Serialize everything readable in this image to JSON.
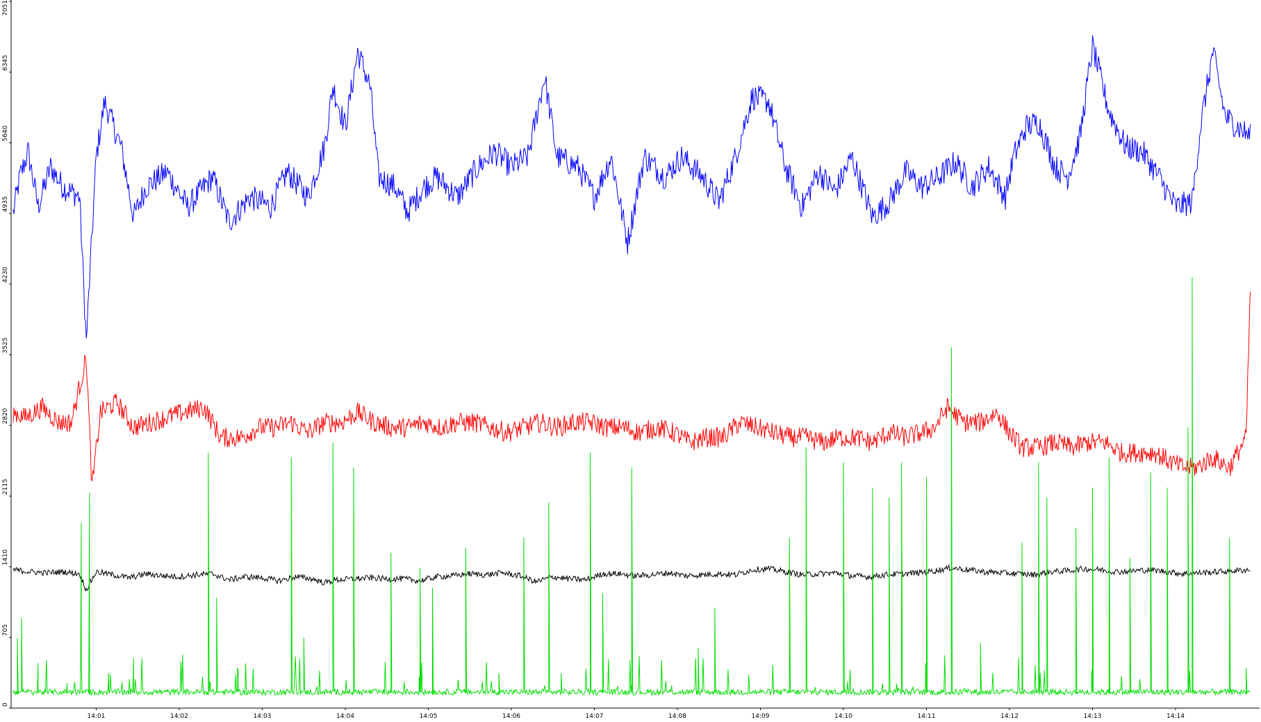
{
  "chart_data": {
    "type": "line",
    "title": "",
    "xlabel": "",
    "ylabel": "",
    "ylim": [
      0,
      7051
    ],
    "xlim_minutes": [
      14.0,
      14.9
    ],
    "y_ticks": [
      {
        "value": 0,
        "label": "0"
      },
      {
        "value": 705,
        "label": "705"
      },
      {
        "value": 1410,
        "label": "1410"
      },
      {
        "value": 2115,
        "label": "2115"
      },
      {
        "value": 2820,
        "label": "2820"
      },
      {
        "value": 3525,
        "label": "3525"
      },
      {
        "value": 4230,
        "label": "4230"
      },
      {
        "value": 4935,
        "label": "4935"
      },
      {
        "value": 5640,
        "label": "5640"
      },
      {
        "value": 6345,
        "label": "6345"
      },
      {
        "value": 7051,
        "label": "7051"
      }
    ],
    "x_ticks": [
      "14:01",
      "14:02",
      "14:03",
      "14:04",
      "14:05",
      "14:06",
      "14:07",
      "14:08",
      "14:09",
      "14:10",
      "14:11",
      "14:12",
      "14:13",
      "14:14"
    ],
    "x_tick_minutes": [
      1,
      2,
      3,
      4,
      5,
      6,
      7,
      8,
      9,
      10,
      11,
      12,
      13,
      14
    ],
    "grid": false,
    "legend": "none",
    "series": [
      {
        "color": "#0000ff",
        "points": [
          [
            0.0,
            4935
          ],
          [
            0.08,
            5300
          ],
          [
            0.18,
            5550
          ],
          [
            0.3,
            5000
          ],
          [
            0.45,
            5400
          ],
          [
            0.6,
            5200
          ],
          [
            0.8,
            5100
          ],
          [
            0.88,
            3650
          ],
          [
            1.0,
            5500
          ],
          [
            1.1,
            6050
          ],
          [
            1.3,
            5600
          ],
          [
            1.45,
            4900
          ],
          [
            1.6,
            5200
          ],
          [
            1.85,
            5350
          ],
          [
            2.1,
            5000
          ],
          [
            2.4,
            5300
          ],
          [
            2.6,
            4850
          ],
          [
            2.85,
            5100
          ],
          [
            3.1,
            5000
          ],
          [
            3.3,
            5350
          ],
          [
            3.55,
            5100
          ],
          [
            3.75,
            5600
          ],
          [
            3.85,
            6200
          ],
          [
            4.0,
            5800
          ],
          [
            4.15,
            6550
          ],
          [
            4.3,
            6200
          ],
          [
            4.4,
            5300
          ],
          [
            4.6,
            5200
          ],
          [
            4.75,
            4950
          ],
          [
            4.95,
            5200
          ],
          [
            5.1,
            5300
          ],
          [
            5.35,
            5100
          ],
          [
            5.6,
            5400
          ],
          [
            5.8,
            5550
          ],
          [
            6.0,
            5400
          ],
          [
            6.2,
            5500
          ],
          [
            6.4,
            6300
          ],
          [
            6.55,
            5500
          ],
          [
            6.8,
            5400
          ],
          [
            7.0,
            5100
          ],
          [
            7.2,
            5500
          ],
          [
            7.4,
            4650
          ],
          [
            7.6,
            5500
          ],
          [
            7.85,
            5300
          ],
          [
            8.05,
            5500
          ],
          [
            8.3,
            5300
          ],
          [
            8.5,
            5050
          ],
          [
            8.7,
            5500
          ],
          [
            8.9,
            6100
          ],
          [
            9.1,
            6050
          ],
          [
            9.3,
            5400
          ],
          [
            9.5,
            5000
          ],
          [
            9.7,
            5350
          ],
          [
            9.9,
            5150
          ],
          [
            10.1,
            5500
          ],
          [
            10.35,
            4900
          ],
          [
            10.55,
            5050
          ],
          [
            10.75,
            5350
          ],
          [
            10.95,
            5200
          ],
          [
            11.15,
            5300
          ],
          [
            11.35,
            5450
          ],
          [
            11.55,
            5200
          ],
          [
            11.75,
            5400
          ],
          [
            11.95,
            5100
          ],
          [
            12.05,
            5500
          ],
          [
            12.2,
            5800
          ],
          [
            12.35,
            5850
          ],
          [
            12.55,
            5400
          ],
          [
            12.7,
            5300
          ],
          [
            12.85,
            5700
          ],
          [
            13.0,
            6600
          ],
          [
            13.2,
            5950
          ],
          [
            13.4,
            5600
          ],
          [
            13.6,
            5550
          ],
          [
            13.8,
            5300
          ],
          [
            14.0,
            5000
          ],
          [
            14.2,
            5050
          ],
          [
            14.3,
            5800
          ],
          [
            14.45,
            6550
          ],
          [
            14.6,
            5900
          ],
          [
            14.75,
            5800
          ],
          [
            14.9,
            5700
          ]
        ]
      },
      {
        "color": "#ff0000",
        "points": [
          [
            0.0,
            2950
          ],
          [
            0.15,
            2900
          ],
          [
            0.35,
            3000
          ],
          [
            0.55,
            2850
          ],
          [
            0.7,
            2850
          ],
          [
            0.88,
            3500
          ],
          [
            0.95,
            2200
          ],
          [
            1.05,
            2950
          ],
          [
            1.25,
            3050
          ],
          [
            1.45,
            2800
          ],
          [
            1.65,
            2850
          ],
          [
            1.85,
            2900
          ],
          [
            2.05,
            2950
          ],
          [
            2.3,
            3000
          ],
          [
            2.5,
            2700
          ],
          [
            2.75,
            2700
          ],
          [
            2.95,
            2800
          ],
          [
            3.15,
            2800
          ],
          [
            3.35,
            2850
          ],
          [
            3.55,
            2750
          ],
          [
            3.75,
            2850
          ],
          [
            3.95,
            2850
          ],
          [
            4.15,
            2950
          ],
          [
            4.35,
            2850
          ],
          [
            4.55,
            2800
          ],
          [
            4.75,
            2800
          ],
          [
            4.95,
            2850
          ],
          [
            5.15,
            2800
          ],
          [
            5.35,
            2850
          ],
          [
            5.55,
            2850
          ],
          [
            5.75,
            2800
          ],
          [
            5.95,
            2750
          ],
          [
            6.15,
            2800
          ],
          [
            6.35,
            2850
          ],
          [
            6.55,
            2800
          ],
          [
            6.75,
            2850
          ],
          [
            6.95,
            2850
          ],
          [
            7.15,
            2800
          ],
          [
            7.35,
            2800
          ],
          [
            7.55,
            2750
          ],
          [
            7.75,
            2800
          ],
          [
            7.95,
            2750
          ],
          [
            8.15,
            2650
          ],
          [
            8.35,
            2700
          ],
          [
            8.55,
            2700
          ],
          [
            8.75,
            2850
          ],
          [
            8.95,
            2800
          ],
          [
            9.15,
            2750
          ],
          [
            9.35,
            2700
          ],
          [
            9.55,
            2700
          ],
          [
            9.75,
            2650
          ],
          [
            9.95,
            2700
          ],
          [
            10.15,
            2700
          ],
          [
            10.35,
            2650
          ],
          [
            10.55,
            2750
          ],
          [
            10.75,
            2700
          ],
          [
            10.95,
            2750
          ],
          [
            11.1,
            2800
          ],
          [
            11.25,
            3000
          ],
          [
            11.45,
            2850
          ],
          [
            11.65,
            2850
          ],
          [
            11.85,
            2950
          ],
          [
            12.0,
            2750
          ],
          [
            12.15,
            2600
          ],
          [
            12.35,
            2600
          ],
          [
            12.55,
            2650
          ],
          [
            12.75,
            2600
          ],
          [
            12.95,
            2650
          ],
          [
            13.15,
            2650
          ],
          [
            13.35,
            2550
          ],
          [
            13.55,
            2550
          ],
          [
            13.75,
            2550
          ],
          [
            13.95,
            2450
          ],
          [
            14.1,
            2400
          ],
          [
            14.25,
            2400
          ],
          [
            14.45,
            2500
          ],
          [
            14.65,
            2400
          ],
          [
            14.85,
            2700
          ],
          [
            14.9,
            4150
          ]
        ]
      },
      {
        "color": "#000000",
        "points": [
          [
            0.0,
            1380
          ],
          [
            0.2,
            1360
          ],
          [
            0.4,
            1350
          ],
          [
            0.6,
            1360
          ],
          [
            0.8,
            1340
          ],
          [
            0.88,
            1180
          ],
          [
            1.0,
            1360
          ],
          [
            1.2,
            1330
          ],
          [
            1.4,
            1300
          ],
          [
            1.6,
            1340
          ],
          [
            1.8,
            1320
          ],
          [
            2.0,
            1310
          ],
          [
            2.2,
            1330
          ],
          [
            2.4,
            1340
          ],
          [
            2.6,
            1280
          ],
          [
            2.8,
            1310
          ],
          [
            3.0,
            1300
          ],
          [
            3.2,
            1270
          ],
          [
            3.4,
            1310
          ],
          [
            3.6,
            1290
          ],
          [
            3.75,
            1250
          ],
          [
            3.9,
            1280
          ],
          [
            4.1,
            1290
          ],
          [
            4.3,
            1300
          ],
          [
            4.5,
            1290
          ],
          [
            4.7,
            1290
          ],
          [
            4.9,
            1270
          ],
          [
            5.1,
            1310
          ],
          [
            5.3,
            1320
          ],
          [
            5.5,
            1340
          ],
          [
            5.7,
            1330
          ],
          [
            5.9,
            1350
          ],
          [
            6.1,
            1320
          ],
          [
            6.3,
            1260
          ],
          [
            6.5,
            1310
          ],
          [
            6.7,
            1290
          ],
          [
            6.9,
            1280
          ],
          [
            7.1,
            1340
          ],
          [
            7.3,
            1340
          ],
          [
            7.5,
            1320
          ],
          [
            7.7,
            1330
          ],
          [
            7.9,
            1350
          ],
          [
            8.1,
            1320
          ],
          [
            8.3,
            1330
          ],
          [
            8.5,
            1340
          ],
          [
            8.7,
            1330
          ],
          [
            8.9,
            1380
          ],
          [
            9.1,
            1390
          ],
          [
            9.3,
            1360
          ],
          [
            9.5,
            1330
          ],
          [
            9.7,
            1340
          ],
          [
            9.9,
            1350
          ],
          [
            10.1,
            1320
          ],
          [
            10.3,
            1310
          ],
          [
            10.5,
            1330
          ],
          [
            10.7,
            1340
          ],
          [
            10.9,
            1350
          ],
          [
            11.1,
            1370
          ],
          [
            11.3,
            1400
          ],
          [
            11.5,
            1380
          ],
          [
            11.7,
            1360
          ],
          [
            11.9,
            1350
          ],
          [
            12.1,
            1340
          ],
          [
            12.3,
            1330
          ],
          [
            12.5,
            1360
          ],
          [
            12.7,
            1370
          ],
          [
            12.9,
            1390
          ],
          [
            13.1,
            1380
          ],
          [
            13.3,
            1360
          ],
          [
            13.5,
            1370
          ],
          [
            13.7,
            1380
          ],
          [
            13.9,
            1360
          ],
          [
            14.1,
            1340
          ],
          [
            14.3,
            1350
          ],
          [
            14.5,
            1360
          ],
          [
            14.7,
            1370
          ],
          [
            14.9,
            1380
          ]
        ]
      },
      {
        "color": "#00dd00",
        "baseline": 160,
        "spikes": [
          [
            0.05,
            700
          ],
          [
            0.1,
            900
          ],
          [
            0.3,
            450
          ],
          [
            0.65,
            250
          ],
          [
            0.82,
            1850
          ],
          [
            0.92,
            2150
          ],
          [
            1.15,
            350
          ],
          [
            1.45,
            500
          ],
          [
            2.35,
            2550
          ],
          [
            2.45,
            1100
          ],
          [
            2.7,
            400
          ],
          [
            3.35,
            2500
          ],
          [
            3.5,
            700
          ],
          [
            3.85,
            2650
          ],
          [
            4.1,
            2400
          ],
          [
            4.55,
            1550
          ],
          [
            4.9,
            1400
          ],
          [
            5.05,
            1200
          ],
          [
            5.45,
            1600
          ],
          [
            5.85,
            350
          ],
          [
            6.15,
            1700
          ],
          [
            6.45,
            2050
          ],
          [
            6.6,
            350
          ],
          [
            6.95,
            2550
          ],
          [
            7.1,
            1150
          ],
          [
            7.45,
            2400
          ],
          [
            8.25,
            600
          ],
          [
            8.45,
            1000
          ],
          [
            9.35,
            1700
          ],
          [
            9.55,
            2600
          ],
          [
            10.0,
            2450
          ],
          [
            10.35,
            2200
          ],
          [
            10.55,
            2100
          ],
          [
            10.7,
            2450
          ],
          [
            11.0,
            2300
          ],
          [
            11.3,
            3600
          ],
          [
            11.65,
            650
          ],
          [
            12.15,
            1650
          ],
          [
            12.35,
            2450
          ],
          [
            12.45,
            2100
          ],
          [
            12.8,
            1800
          ],
          [
            13.0,
            2200
          ],
          [
            13.2,
            2500
          ],
          [
            13.45,
            1500
          ],
          [
            13.7,
            2350
          ],
          [
            13.9,
            2200
          ],
          [
            14.15,
            2800
          ],
          [
            14.2,
            4300
          ],
          [
            14.65,
            1700
          ],
          [
            14.85,
            400
          ]
        ]
      }
    ]
  }
}
